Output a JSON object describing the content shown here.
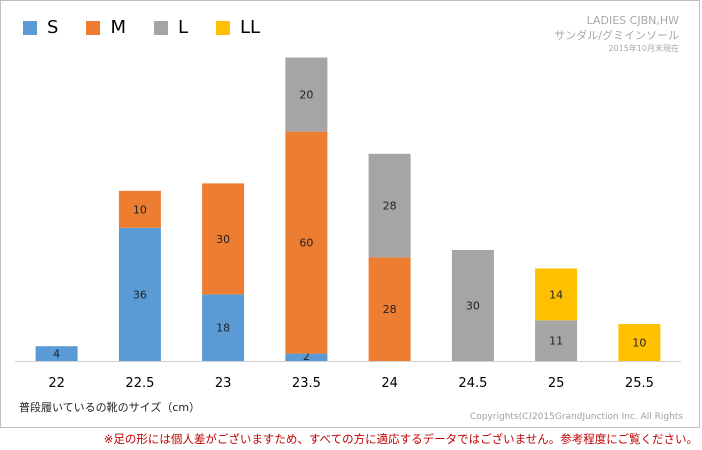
{
  "colors": {
    "S": "#5b9bd5",
    "M": "#ed7d31",
    "L": "#a5a5a5",
    "LL": "#ffc000"
  },
  "info": {
    "line1": "LADIES  CJBN,HW",
    "line2": "サンダル/グミインソール",
    "line3": "2015年10月末現在"
  },
  "xaxis_title": "普段履いているの靴のサイズ（cm）",
  "copyright": "Copyrights(C)2015GrandJunction Inc. All Rights",
  "disclaimer": "※足の形には個人差がございますため、すべての方に適応するデータではございません。参考程度にご覧ください。",
  "chart_data": {
    "type": "bar",
    "stacked": true,
    "categories": [
      "22",
      "22.5",
      "23",
      "23.5",
      "24",
      "24.5",
      "25",
      "25.5"
    ],
    "series": [
      {
        "name": "S",
        "values": [
          4,
          36,
          18,
          2,
          0,
          0,
          0,
          0
        ]
      },
      {
        "name": "M",
        "values": [
          0,
          10,
          30,
          60,
          28,
          0,
          0,
          0
        ]
      },
      {
        "name": "L",
        "values": [
          0,
          0,
          0,
          20,
          28,
          30,
          11,
          0
        ]
      },
      {
        "name": "LL",
        "values": [
          0,
          0,
          0,
          0,
          0,
          0,
          14,
          10
        ]
      }
    ],
    "ylim": [
      0,
      85
    ],
    "grid": false,
    "legend": "top-left"
  }
}
